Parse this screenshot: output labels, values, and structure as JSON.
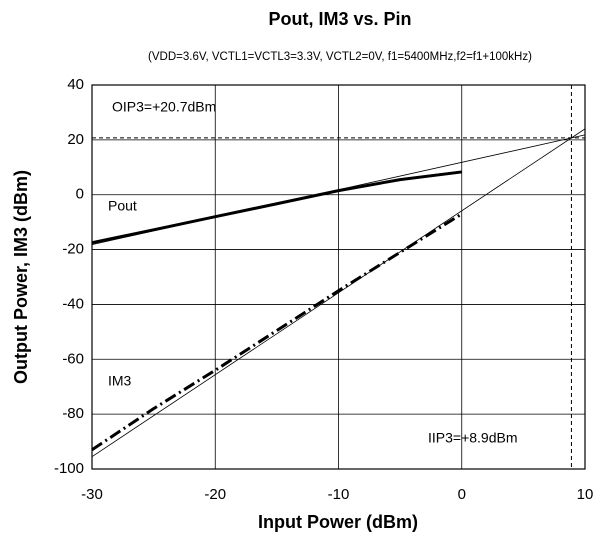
{
  "chart_data": {
    "type": "line",
    "title": "Pout, IM3 vs. Pin",
    "subtitle": "(VDD=3.6V, VCTL1=VCTL3=3.3V, VCTL2=0V, f1=5400MHz,f2=f1+100kHz)",
    "x_label": "Input Power (dBm)",
    "y_label": "Output Power, IM3 (dBm)",
    "x": [
      -30,
      -25,
      -20,
      -15,
      -10,
      -5,
      0
    ],
    "series": [
      {
        "name": "Pout",
        "color": "#000000",
        "values": [
          -17.5,
          -12.8,
          -8,
          -3.3,
          1.5,
          5.5,
          8.3
        ]
      },
      {
        "name": "IM3",
        "color": "#000000",
        "values": [
          -93,
          -78,
          -64,
          -49.5,
          -35,
          -21,
          -7
        ]
      }
    ],
    "extrapolation": [
      {
        "x": [
          -30,
          10
        ],
        "values": [
          -18.2,
          21.8
        ]
      },
      {
        "x": [
          -30,
          10
        ],
        "values": [
          -95.5,
          24
        ]
      }
    ],
    "reference_lines": {
      "y": 20.7,
      "x": 8.9
    },
    "annotations": [
      "OIP3=+20.7dBm",
      "IIP3=+8.9dBm"
    ],
    "xlim": [
      -30,
      10
    ],
    "ylim": [
      -100,
      40
    ],
    "xticks": [
      -30,
      -20,
      -10,
      0,
      10
    ],
    "yticks": [
      -100,
      -80,
      -60,
      -40,
      -20,
      0,
      20,
      40
    ],
    "grid": true
  }
}
